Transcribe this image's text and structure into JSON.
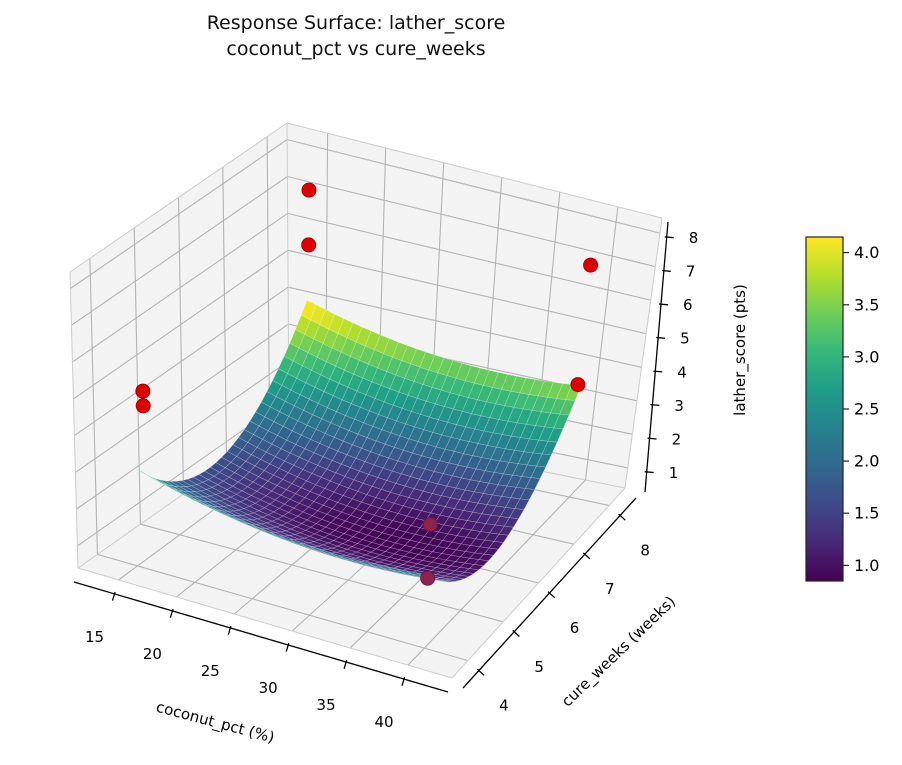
{
  "chart_data": {
    "type": "surface3d",
    "title": "Response Surface: lather_score\ncoconut_pct vs cure_weeks",
    "xlabel": "coconut_pct (%)",
    "ylabel": "cure_weeks (weeks)",
    "zlabel": "lather_score (pts)",
    "x_ticks": [
      15,
      20,
      25,
      30,
      35,
      40
    ],
    "x_tick_labels": [
      "15",
      "20",
      "25",
      "30",
      "35",
      "40"
    ],
    "y_ticks": [
      4,
      5,
      6,
      7,
      8
    ],
    "y_tick_labels": [
      "4",
      "5",
      "6",
      "7",
      "8"
    ],
    "z_ticks": [
      1,
      2,
      3,
      4,
      5,
      6,
      7,
      8
    ],
    "z_tick_labels": [
      "1",
      "2",
      "3",
      "4",
      "5",
      "6",
      "7",
      "8"
    ],
    "xlim": [
      11.5,
      43.8
    ],
    "ylim": [
      3.55,
      8.45
    ],
    "zlim": [
      0.4,
      8.45
    ],
    "grid": true,
    "surface": {
      "model": "z = base + kx*(x-x0)^2 + ky*(y-y0)^2",
      "base": 0.85,
      "kx": 0.00267,
      "x0": 32,
      "ky": 0.5,
      "y0": 5.7,
      "x_range": [
        15,
        40
      ],
      "y_range": [
        4,
        8
      ],
      "mesh_n": 30,
      "z_min": 0.85,
      "z_max": 4.27
    },
    "colorbar": {
      "vmin": 0.85,
      "vmax": 4.15,
      "tick_values": [
        1.0,
        1.5,
        2.0,
        2.5,
        3.0,
        3.5,
        4.0
      ],
      "tick_labels": [
        "1.0",
        "1.5",
        "2.0",
        "2.5",
        "3.0",
        "3.5",
        "4.0"
      ],
      "colormap": "viridis"
    },
    "scatter_points": [
      {
        "x": 15.5,
        "y": 7.9,
        "z": 7.4,
        "dim": false
      },
      {
        "x": 15.5,
        "y": 7.9,
        "z": 5.9,
        "dim": false
      },
      {
        "x": 40.0,
        "y": 7.9,
        "z": 7.3,
        "dim": false
      },
      {
        "x": 40.0,
        "y": 7.9,
        "z": 3.8,
        "dim": false
      },
      {
        "x": 15.0,
        "y": 4.2,
        "z": 5.0,
        "dim": false
      },
      {
        "x": 15.0,
        "y": 4.2,
        "z": 4.6,
        "dim": false
      },
      {
        "x": 33.5,
        "y": 6.1,
        "z": 1.15,
        "dim": true
      },
      {
        "x": 37.0,
        "y": 5.0,
        "z": 1.05,
        "dim": true
      }
    ],
    "colors": {
      "point": "#dd0000",
      "point_edge": "#a50000",
      "point_dim": "#8f2350",
      "point_dim_edge": "#6e1a3e",
      "pane_fill": "#f3f3f3",
      "pane_edge": "#cccccc",
      "grid_line": "#b3b3b3",
      "axis_line": "#000000",
      "mesh_line": "rgba(255,255,255,0.30)",
      "viridis": [
        "#440154",
        "#482878",
        "#3e4a89",
        "#31688e",
        "#26828e",
        "#1f9e89",
        "#35b779",
        "#6ece58",
        "#b5de2b",
        "#fde725"
      ]
    }
  }
}
